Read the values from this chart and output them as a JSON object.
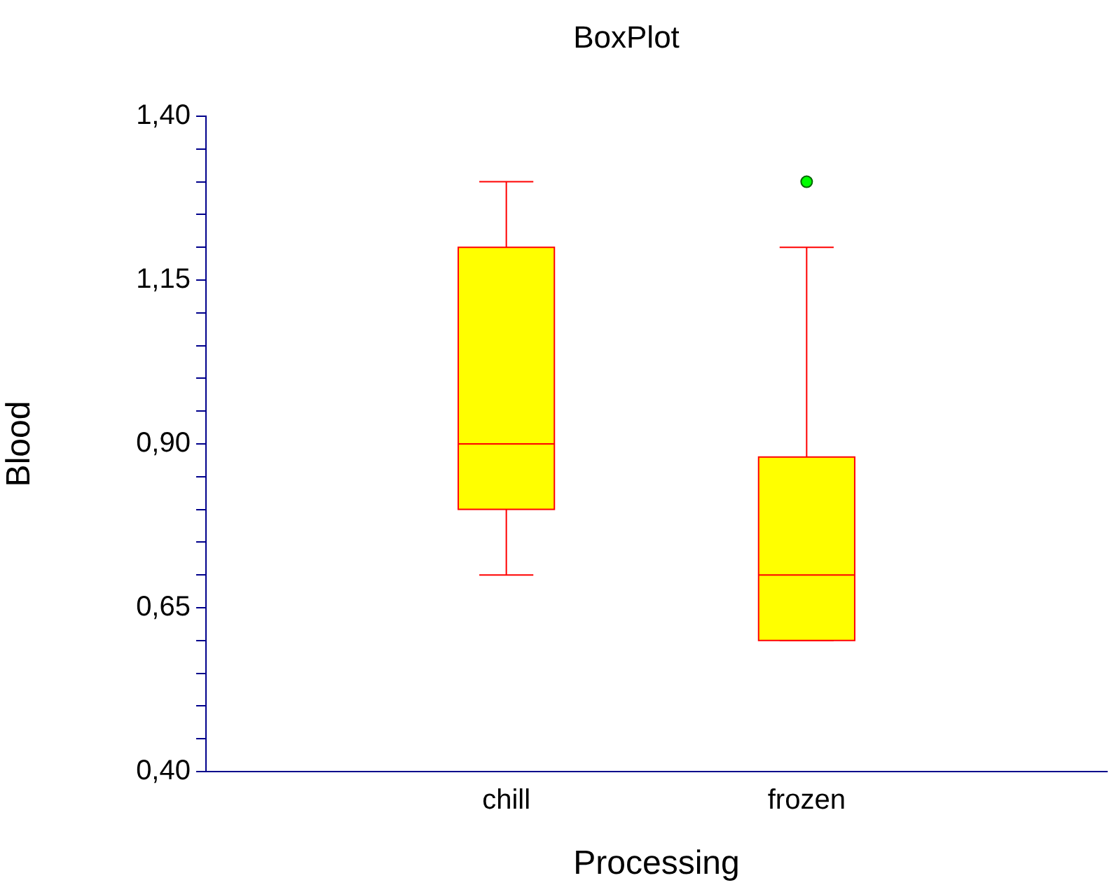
{
  "chart_data": {
    "type": "box",
    "title": "BoxPlot",
    "xlabel": "Processing",
    "ylabel": "Blood",
    "categories": [
      "chill",
      "frozen"
    ],
    "series": [
      {
        "color": "#ffff00",
        "boxes": [
          {
            "low": 0.7,
            "q1": 0.8,
            "median": 0.9,
            "q3": 1.2,
            "high": 1.3
          },
          {
            "low": 0.6,
            "q1": 0.6,
            "median": 0.7,
            "q3": 0.88,
            "high": 1.2,
            "outliers": [
              1.3
            ]
          }
        ]
      }
    ],
    "ylim": [
      0.4,
      1.4
    ],
    "yticks": [
      {
        "value": 0.4,
        "label": "0,40"
      },
      {
        "value": 0.45,
        "label": null
      },
      {
        "value": 0.5,
        "label": null
      },
      {
        "value": 0.55,
        "label": null
      },
      {
        "value": 0.6,
        "label": null
      },
      {
        "value": 0.65,
        "label": "0,65"
      },
      {
        "value": 0.7,
        "label": null
      },
      {
        "value": 0.75,
        "label": null
      },
      {
        "value": 0.8,
        "label": null
      },
      {
        "value": 0.85,
        "label": null
      },
      {
        "value": 0.9,
        "label": "0,90"
      },
      {
        "value": 0.95,
        "label": null
      },
      {
        "value": 1.0,
        "label": null
      },
      {
        "value": 1.05,
        "label": null
      },
      {
        "value": 1.1,
        "label": null
      },
      {
        "value": 1.15,
        "label": "1,15"
      },
      {
        "value": 1.2,
        "label": null
      },
      {
        "value": 1.25,
        "label": null
      },
      {
        "value": 1.3,
        "label": null
      },
      {
        "value": 1.35,
        "label": null
      },
      {
        "value": 1.4,
        "label": "1,40"
      }
    ],
    "grid": false,
    "legend": false
  }
}
